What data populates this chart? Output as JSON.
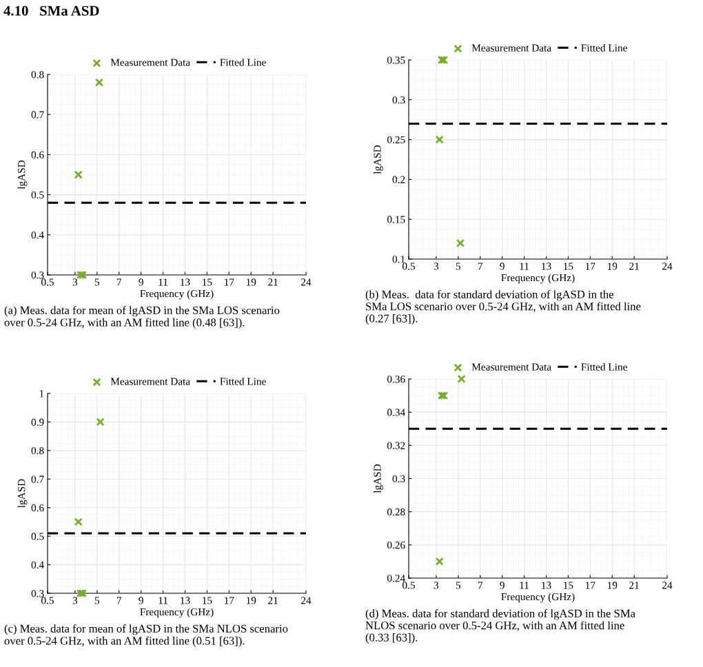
{
  "chart_data": [
    {
      "type": "scatter",
      "xlabel": "Frequency (GHz)",
      "ylabel": "lgASD",
      "xlim": [
        0.5,
        24
      ],
      "xticks": [
        0.5,
        3,
        5,
        7,
        9,
        11,
        13,
        15,
        17,
        19,
        21,
        24
      ],
      "ylim": [
        0.3,
        0.8
      ],
      "yticks": [
        0.3,
        0.4,
        0.5,
        0.6,
        0.7,
        0.8
      ],
      "grid": true,
      "legend": "top",
      "marker": "cross",
      "series": [
        {
          "name": "Measurement Data",
          "color": "#77ac30",
          "x": [
            3.3,
            3.5,
            3.7,
            5.2
          ],
          "values": [
            0.55,
            0.3,
            0.3,
            0.78
          ]
        },
        {
          "name": "Fitted Line",
          "type": "line",
          "color": "#000000",
          "line_style": "dashed",
          "marker": "none",
          "x": [
            0.5,
            24
          ],
          "values": [
            0.48,
            0.48
          ]
        }
      ],
      "annotations": [
        "4.10   SMa ASD",
        "(a) Meas. data for mean of lgASD in the SMa LOS scenario\nover 0.5-24 GHz, with an AM fitted line (0.48 [63])."
      ]
    },
    {
      "type": "scatter",
      "xlabel": "Frequency (GHz)",
      "ylabel": "lgASD",
      "xlim": [
        0.5,
        24
      ],
      "xticks": [
        0.5,
        3,
        5,
        7,
        9,
        11,
        13,
        15,
        17,
        19,
        21,
        24
      ],
      "ylim": [
        0.1,
        0.35
      ],
      "yticks": [
        0.1,
        0.15,
        0.2,
        0.25,
        0.3,
        0.35
      ],
      "grid": true,
      "legend": "top",
      "marker": "cross",
      "series": [
        {
          "name": "Measurement Data",
          "color": "#77ac30",
          "x": [
            3.3,
            3.5,
            3.7,
            5.2
          ],
          "values": [
            0.25,
            0.35,
            0.35,
            0.12
          ]
        },
        {
          "name": "Fitted Line",
          "type": "line",
          "color": "#000000",
          "line_style": "dashed",
          "marker": "none",
          "x": [
            0.5,
            24
          ],
          "values": [
            0.27,
            0.27
          ]
        }
      ],
      "annotations": [
        "(b) Meas.  data for standard deviation of lgASD in the\nSMa LOS scenario over 0.5-24 GHz, with an AM fitted line\n(0.27 [63])."
      ]
    },
    {
      "type": "scatter",
      "xlabel": "Frequency (GHz)",
      "ylabel": "lgASD",
      "xlim": [
        0.5,
        24
      ],
      "xticks": [
        0.5,
        3,
        5,
        7,
        9,
        11,
        13,
        15,
        17,
        19,
        21,
        24
      ],
      "ylim": [
        0.3,
        1
      ],
      "yticks": [
        0.3,
        0.4,
        0.5,
        0.6,
        0.7,
        0.8,
        0.9,
        1
      ],
      "grid": true,
      "legend": "top",
      "marker": "cross",
      "series": [
        {
          "name": "Measurement Data",
          "color": "#77ac30",
          "x": [
            3.3,
            3.5,
            3.7,
            5.3
          ],
          "values": [
            0.55,
            0.3,
            0.3,
            0.9
          ]
        },
        {
          "name": "Fitted Line",
          "type": "line",
          "color": "#000000",
          "line_style": "dashed",
          "marker": "none",
          "x": [
            0.5,
            24
          ],
          "values": [
            0.51,
            0.51
          ]
        }
      ],
      "annotations": [
        "(c) Meas. data for mean of lgASD in the SMa NLOS scenario\nover 0.5-24 GHz, with an AM fitted line (0.51 [63])."
      ]
    },
    {
      "type": "scatter",
      "xlabel": "Frequency (GHz)",
      "ylabel": "lgASD",
      "xlim": [
        0.5,
        24
      ],
      "xticks": [
        0.5,
        3,
        5,
        7,
        9,
        11,
        13,
        15,
        17,
        19,
        21,
        24
      ],
      "ylim": [
        0.24,
        0.36
      ],
      "yticks": [
        0.24,
        0.26,
        0.28,
        0.3,
        0.32,
        0.34,
        0.36
      ],
      "grid": true,
      "legend": "top",
      "marker": "cross",
      "series": [
        {
          "name": "Measurement Data",
          "color": "#77ac30",
          "x": [
            3.3,
            3.5,
            3.7,
            5.3
          ],
          "values": [
            0.25,
            0.35,
            0.35,
            0.36
          ]
        },
        {
          "name": "Fitted Line",
          "type": "line",
          "color": "#000000",
          "line_style": "dashed",
          "marker": "none",
          "x": [
            0.5,
            24
          ],
          "values": [
            0.33,
            0.33
          ]
        }
      ],
      "annotations": [
        "(d) Meas. data for standard deviation of lgASD in the SMa\nNLOS scenario over 0.5-24 GHz, with an AM fitted line\n(0.33 [63])."
      ]
    }
  ]
}
